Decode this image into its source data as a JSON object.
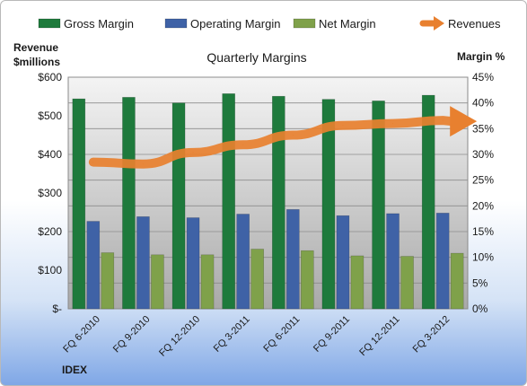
{
  "chart_data": {
    "type": "bar",
    "title": "Quarterly Margins",
    "y_left_label_line1": "Revenue",
    "y_left_label_line2": "$millions",
    "y_right_label": "Margin %",
    "footer": "IDEX",
    "categories": [
      "FQ 6-2010",
      "FQ 9-2010",
      "FQ 12-2010",
      "FQ 3-2011",
      "FQ 6-2011",
      "FQ 9-2011",
      "FQ 12-2011",
      "FQ 3-2012"
    ],
    "y_left": {
      "min": 0,
      "max": 600,
      "ticks": [
        "$-",
        "$100",
        "$200",
        "$300",
        "$400",
        "$500",
        "$600"
      ]
    },
    "y_right": {
      "min": 0,
      "max": 45,
      "ticks": [
        "0%",
        "5%",
        "10%",
        "15%",
        "20%",
        "25%",
        "30%",
        "35%",
        "40%",
        "45%"
      ]
    },
    "grid": true,
    "legend_position": "top",
    "series": [
      {
        "name": "Gross Margin",
        "type": "bar",
        "axis": "right",
        "color": "#1e7a3c",
        "values": [
          40.8,
          41.1,
          40.0,
          41.8,
          41.3,
          40.7,
          40.4,
          41.5
        ]
      },
      {
        "name": "Operating Margin",
        "type": "bar",
        "axis": "right",
        "color": "#3f62a6",
        "values": [
          17.0,
          17.9,
          17.7,
          18.4,
          19.3,
          18.1,
          18.5,
          18.6
        ]
      },
      {
        "name": "Net Margin",
        "type": "bar",
        "axis": "right",
        "color": "#7fa14a",
        "values": [
          10.9,
          10.5,
          10.5,
          11.6,
          11.3,
          10.3,
          10.2,
          10.8
        ]
      },
      {
        "name": "Revenues",
        "type": "line",
        "axis": "left",
        "color": "#e8802f",
        "values": [
          380,
          375,
          405,
          425,
          450,
          475,
          480,
          488
        ]
      }
    ]
  }
}
